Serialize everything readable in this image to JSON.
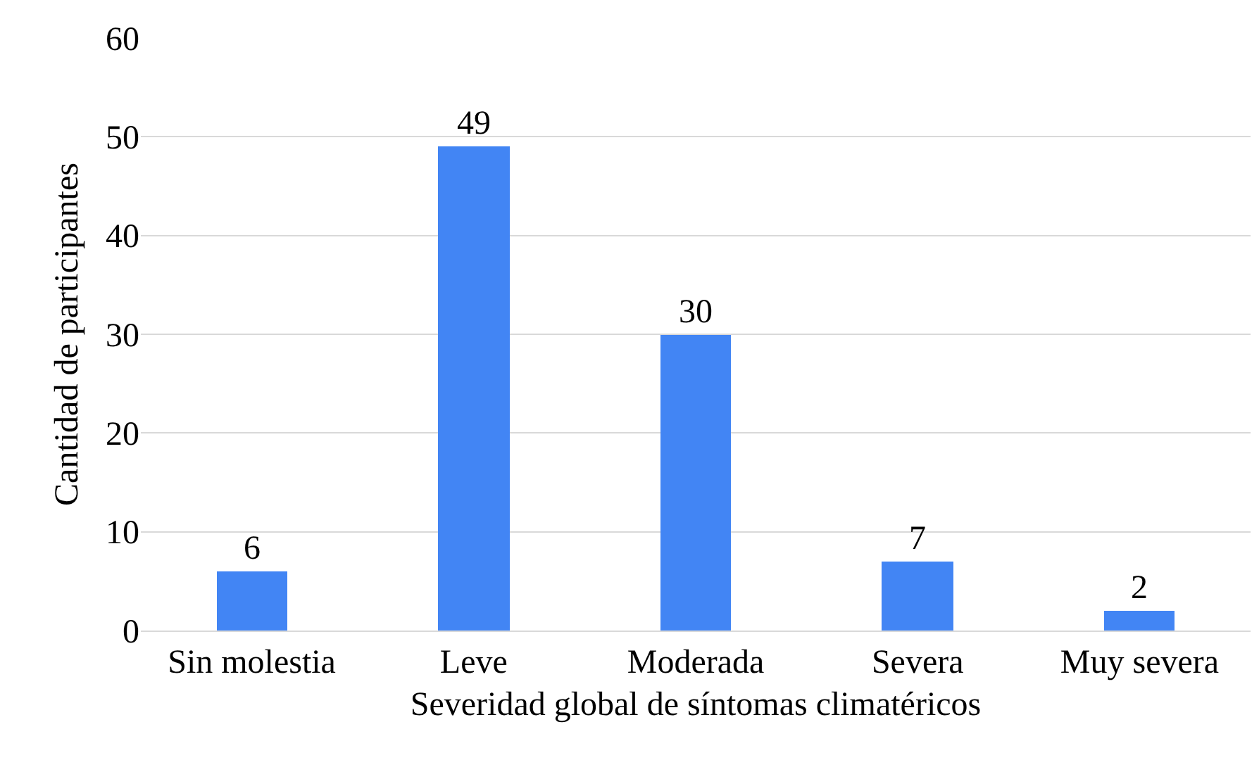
{
  "chart_data": {
    "type": "bar",
    "xlabel": "Severidad global de síntomas climatéricos",
    "ylabel": "Cantidad de participantes",
    "categories": [
      "Sin molestia",
      "Leve",
      "Moderada",
      "Severa",
      "Muy severa"
    ],
    "values": [
      6,
      49,
      30,
      7,
      2
    ],
    "color": "#4285f4",
    "ylim": [
      0,
      60
    ],
    "yticks": [
      0,
      10,
      20,
      30,
      40,
      50,
      60
    ],
    "grid": "y",
    "data_labels": true
  }
}
